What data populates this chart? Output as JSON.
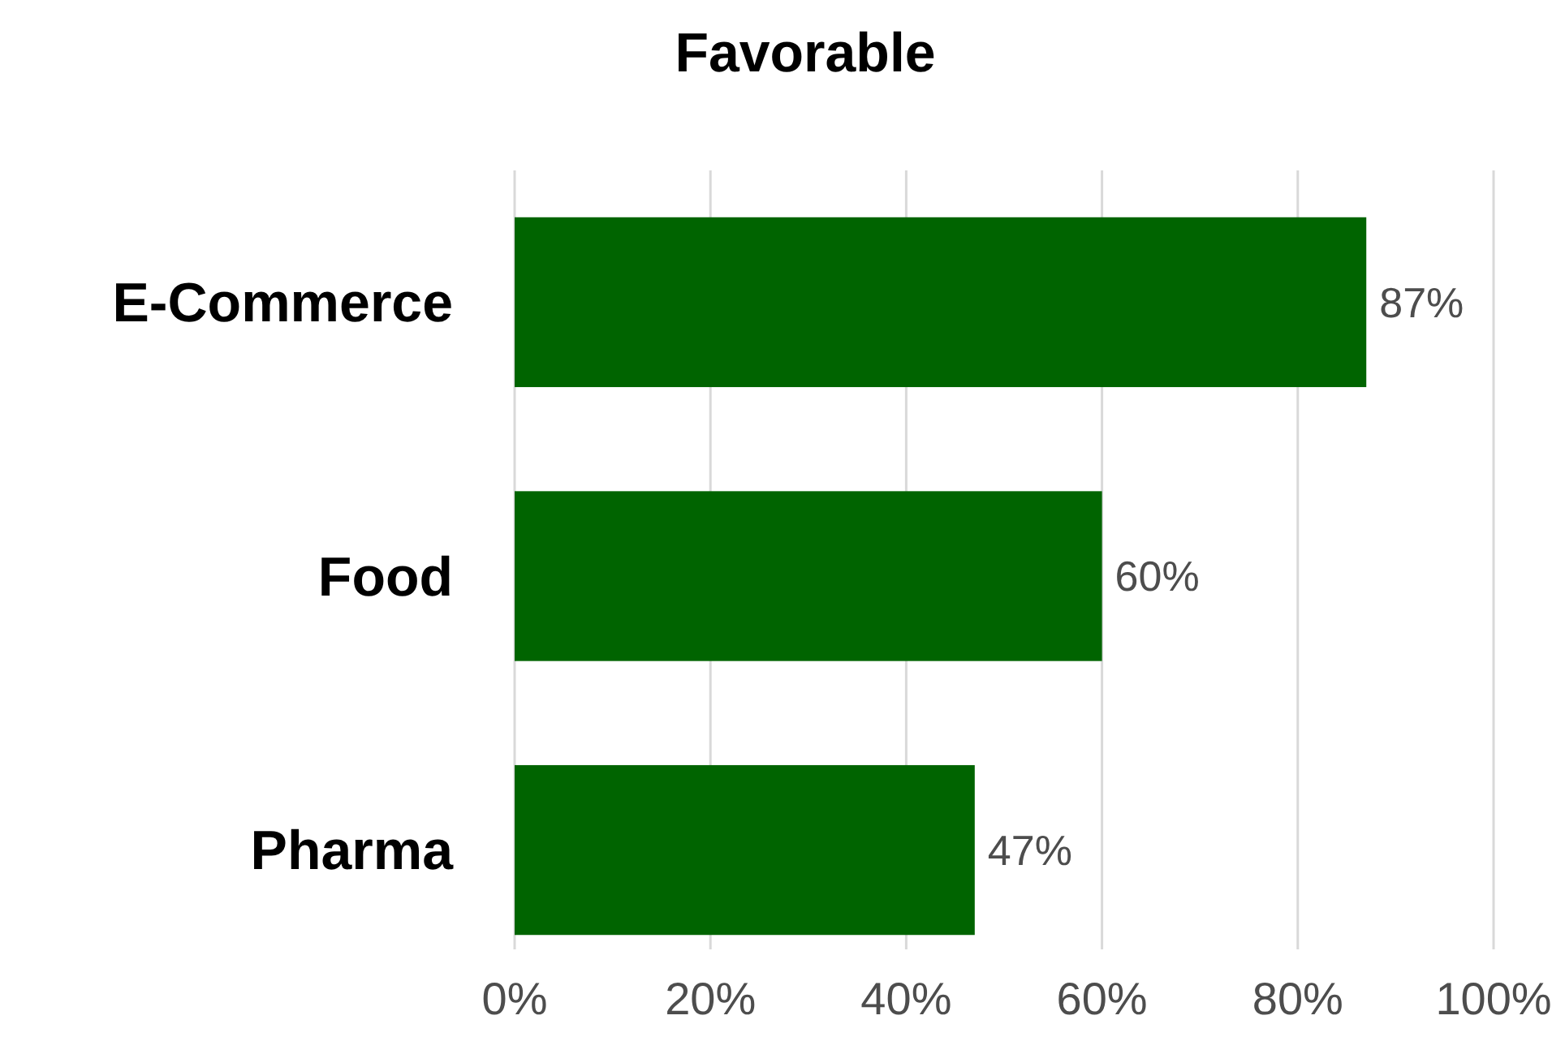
{
  "chart_data": {
    "type": "bar",
    "orientation": "horizontal",
    "title": "Favorable",
    "categories": [
      "E-Commerce",
      "Food",
      "Pharma"
    ],
    "values": [
      87,
      60,
      47
    ],
    "value_labels": [
      "87%",
      "60%",
      "47%"
    ],
    "color": "#006400",
    "xlim": [
      0,
      100
    ],
    "xticks": [
      {
        "value": 0,
        "label": "0%"
      },
      {
        "value": 20,
        "label": "20%"
      },
      {
        "value": 40,
        "label": "40%"
      },
      {
        "value": 60,
        "label": "60%"
      },
      {
        "value": 80,
        "label": "80%"
      },
      {
        "value": 100,
        "label": "100%"
      }
    ],
    "grid": "x"
  }
}
